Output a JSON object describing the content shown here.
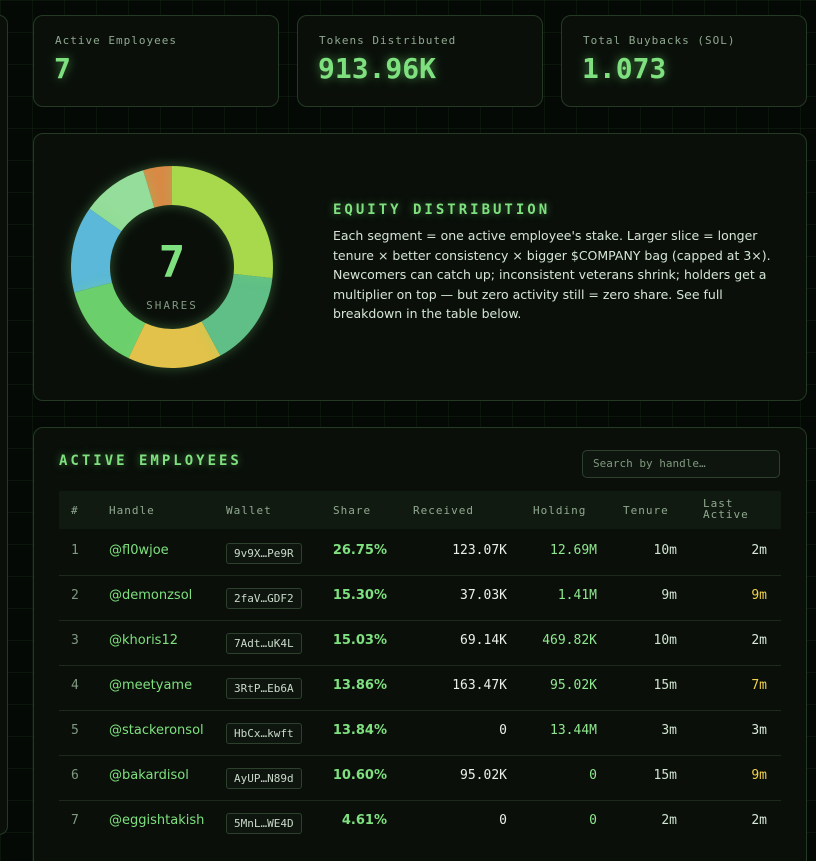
{
  "stats": [
    {
      "label": "Active Employees",
      "value": "7"
    },
    {
      "label": "Tokens Distributed",
      "value": "913.96K"
    },
    {
      "label": "Total Buybacks (SOL)",
      "value": "1.073"
    }
  ],
  "equity": {
    "center_value": "7",
    "center_label": "SHARES",
    "title": "EQUITY DISTRIBUTION",
    "description": "Each segment = one active employee's stake. Larger slice = longer tenure × better consistency × bigger $COMPANY bag (capped at 3×). Newcomers can catch up; inconsistent veterans shrink; holders get a multiplier on top — but zero activity still = zero share. See full breakdown in the table below."
  },
  "table": {
    "title": "ACTIVE EMPLOYEES",
    "search_placeholder": "Search by handle…",
    "columns": [
      "#",
      "Handle",
      "Wallet",
      "Share",
      "Received",
      "Holding",
      "Tenure",
      "Last Active"
    ],
    "rows": [
      {
        "index": "1",
        "handle": "@fl0wjoe",
        "wallet": "9v9X…Pe9R",
        "share": {
          "value": 26.75,
          "label": "26.75%"
        },
        "received": "123.07K",
        "holding": "12.69M",
        "tenure": "10m",
        "last_active": "2m",
        "last_active_color": "#d8e8d8",
        "color": "#a8d84c"
      },
      {
        "index": "2",
        "handle": "@demonzsol",
        "wallet": "2faV…GDF2",
        "share": {
          "value": 15.3,
          "label": "15.30%"
        },
        "received": "37.03K",
        "holding": "1.41M",
        "tenure": "9m",
        "last_active": "9m",
        "last_active_color": "#f2d24a",
        "color": "#5fbf86"
      },
      {
        "index": "3",
        "handle": "@khoris12",
        "wallet": "7Adt…uK4L",
        "share": {
          "value": 15.03,
          "label": "15.03%"
        },
        "received": "69.14K",
        "holding": "469.82K",
        "tenure": "10m",
        "last_active": "2m",
        "last_active_color": "#d8e8d8",
        "color": "#e2c24a"
      },
      {
        "index": "4",
        "handle": "@meetyame",
        "wallet": "3RtP…Eb6A",
        "share": {
          "value": 13.86,
          "label": "13.86%"
        },
        "received": "163.47K",
        "holding": "95.02K",
        "tenure": "15m",
        "last_active": "7m",
        "last_active_color": "#f2d24a",
        "color": "#6bcf6b"
      },
      {
        "index": "5",
        "handle": "@stackeronsol",
        "wallet": "HbCx…kwft",
        "share": {
          "value": 13.84,
          "label": "13.84%"
        },
        "received": "0",
        "holding": "13.44M",
        "tenure": "3m",
        "last_active": "3m",
        "last_active_color": "#d8e8d8",
        "color": "#5bb8d8"
      },
      {
        "index": "6",
        "handle": "@bakardisol",
        "wallet": "AyUP…N89d",
        "share": {
          "value": 10.6,
          "label": "10.60%"
        },
        "received": "95.02K",
        "holding": "0",
        "tenure": "15m",
        "last_active": "9m",
        "last_active_color": "#f2d24a",
        "color": "#94dd9a"
      },
      {
        "index": "7",
        "handle": "@eggishtakish",
        "wallet": "5MnL…WE4D",
        "share": {
          "value": 4.61,
          "label": "4.61%"
        },
        "received": "0",
        "holding": "0",
        "tenure": "2m",
        "last_active": "2m",
        "last_active_color": "#d8e8d8",
        "color": "#d98a45"
      }
    ]
  }
}
